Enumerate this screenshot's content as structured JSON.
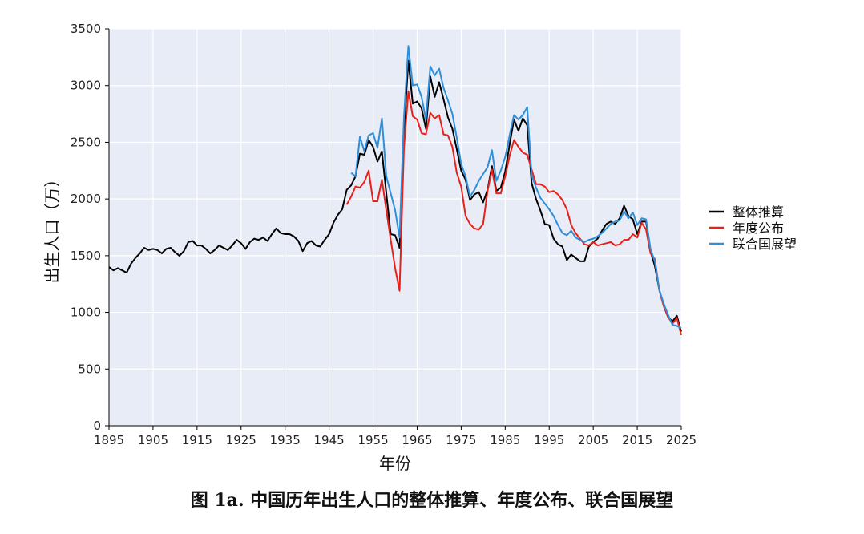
{
  "caption": "图 1a. 中国历年出生人口的整体推算、年度公布、联合国展望",
  "chart_data": {
    "type": "line",
    "title": "",
    "xlabel": "年份",
    "ylabel": "出生人口（万）",
    "xlim": [
      1895,
      2025
    ],
    "ylim": [
      0,
      3500
    ],
    "x_ticks": [
      1895,
      1905,
      1915,
      1925,
      1935,
      1945,
      1955,
      1965,
      1975,
      1985,
      1995,
      2005,
      2015,
      2025
    ],
    "y_ticks": [
      0,
      500,
      1000,
      1500,
      2000,
      2500,
      3000,
      3500
    ],
    "grid": true,
    "plot_background": "#e8ecf6",
    "legend_position": "right",
    "series": [
      {
        "name": "整体推算",
        "color": "#000000",
        "points": [
          [
            1895,
            1400
          ],
          [
            1896,
            1370
          ],
          [
            1897,
            1390
          ],
          [
            1898,
            1370
          ],
          [
            1899,
            1350
          ],
          [
            1900,
            1430
          ],
          [
            1901,
            1480
          ],
          [
            1902,
            1520
          ],
          [
            1903,
            1570
          ],
          [
            1904,
            1550
          ],
          [
            1905,
            1560
          ],
          [
            1906,
            1550
          ],
          [
            1907,
            1520
          ],
          [
            1908,
            1560
          ],
          [
            1909,
            1570
          ],
          [
            1910,
            1530
          ],
          [
            1911,
            1500
          ],
          [
            1912,
            1540
          ],
          [
            1913,
            1620
          ],
          [
            1914,
            1630
          ],
          [
            1915,
            1590
          ],
          [
            1916,
            1590
          ],
          [
            1917,
            1560
          ],
          [
            1918,
            1520
          ],
          [
            1919,
            1550
          ],
          [
            1920,
            1590
          ],
          [
            1921,
            1570
          ],
          [
            1922,
            1550
          ],
          [
            1923,
            1590
          ],
          [
            1924,
            1640
          ],
          [
            1925,
            1610
          ],
          [
            1926,
            1560
          ],
          [
            1927,
            1620
          ],
          [
            1928,
            1650
          ],
          [
            1929,
            1640
          ],
          [
            1930,
            1660
          ],
          [
            1931,
            1630
          ],
          [
            1932,
            1690
          ],
          [
            1933,
            1740
          ],
          [
            1934,
            1700
          ],
          [
            1935,
            1690
          ],
          [
            1936,
            1690
          ],
          [
            1937,
            1670
          ],
          [
            1938,
            1630
          ],
          [
            1939,
            1540
          ],
          [
            1940,
            1610
          ],
          [
            1941,
            1630
          ],
          [
            1942,
            1590
          ],
          [
            1943,
            1580
          ],
          [
            1944,
            1640
          ],
          [
            1945,
            1690
          ],
          [
            1946,
            1790
          ],
          [
            1947,
            1860
          ],
          [
            1948,
            1910
          ],
          [
            1949,
            2080
          ],
          [
            1950,
            2120
          ],
          [
            1951,
            2200
          ],
          [
            1952,
            2400
          ],
          [
            1953,
            2390
          ],
          [
            1954,
            2520
          ],
          [
            1955,
            2460
          ],
          [
            1956,
            2330
          ],
          [
            1957,
            2420
          ],
          [
            1958,
            2050
          ],
          [
            1959,
            1690
          ],
          [
            1960,
            1680
          ],
          [
            1961,
            1570
          ],
          [
            1962,
            2600
          ],
          [
            1963,
            3220
          ],
          [
            1964,
            2840
          ],
          [
            1965,
            2860
          ],
          [
            1966,
            2800
          ],
          [
            1967,
            2620
          ],
          [
            1968,
            3080
          ],
          [
            1969,
            2900
          ],
          [
            1970,
            3030
          ],
          [
            1971,
            2880
          ],
          [
            1972,
            2720
          ],
          [
            1973,
            2620
          ],
          [
            1974,
            2440
          ],
          [
            1975,
            2250
          ],
          [
            1976,
            2170
          ],
          [
            1977,
            1990
          ],
          [
            1978,
            2040
          ],
          [
            1979,
            2060
          ],
          [
            1980,
            1970
          ],
          [
            1981,
            2080
          ],
          [
            1982,
            2290
          ],
          [
            1983,
            2070
          ],
          [
            1984,
            2100
          ],
          [
            1985,
            2240
          ],
          [
            1986,
            2480
          ],
          [
            1987,
            2700
          ],
          [
            1988,
            2600
          ],
          [
            1989,
            2710
          ],
          [
            1990,
            2650
          ],
          [
            1991,
            2140
          ],
          [
            1992,
            2000
          ],
          [
            1993,
            1900
          ],
          [
            1994,
            1780
          ],
          [
            1995,
            1770
          ],
          [
            1996,
            1650
          ],
          [
            1997,
            1600
          ],
          [
            1998,
            1580
          ],
          [
            1999,
            1460
          ],
          [
            2000,
            1510
          ],
          [
            2001,
            1480
          ],
          [
            2002,
            1450
          ],
          [
            2003,
            1450
          ],
          [
            2004,
            1580
          ],
          [
            2005,
            1620
          ],
          [
            2006,
            1650
          ],
          [
            2007,
            1720
          ],
          [
            2008,
            1780
          ],
          [
            2009,
            1800
          ],
          [
            2010,
            1780
          ],
          [
            2011,
            1830
          ],
          [
            2012,
            1940
          ],
          [
            2013,
            1850
          ],
          [
            2014,
            1820
          ],
          [
            2015,
            1690
          ],
          [
            2016,
            1800
          ],
          [
            2017,
            1800
          ],
          [
            2018,
            1540
          ],
          [
            2019,
            1410
          ],
          [
            2020,
            1200
          ],
          [
            2021,
            1060
          ],
          [
            2022,
            960
          ],
          [
            2023,
            920
          ],
          [
            2024,
            970
          ],
          [
            2025,
            830
          ]
        ]
      },
      {
        "name": "年度公布",
        "color": "#e8211a",
        "points": [
          [
            1949,
            1950
          ],
          [
            1950,
            2020
          ],
          [
            1951,
            2110
          ],
          [
            1952,
            2100
          ],
          [
            1953,
            2150
          ],
          [
            1954,
            2250
          ],
          [
            1955,
            1980
          ],
          [
            1956,
            1980
          ],
          [
            1957,
            2170
          ],
          [
            1958,
            1900
          ],
          [
            1959,
            1640
          ],
          [
            1960,
            1390
          ],
          [
            1961,
            1190
          ],
          [
            1962,
            2450
          ],
          [
            1963,
            2950
          ],
          [
            1964,
            2730
          ],
          [
            1965,
            2700
          ],
          [
            1966,
            2580
          ],
          [
            1967,
            2570
          ],
          [
            1968,
            2760
          ],
          [
            1969,
            2710
          ],
          [
            1970,
            2740
          ],
          [
            1971,
            2570
          ],
          [
            1972,
            2560
          ],
          [
            1973,
            2460
          ],
          [
            1974,
            2230
          ],
          [
            1975,
            2110
          ],
          [
            1976,
            1850
          ],
          [
            1977,
            1780
          ],
          [
            1978,
            1740
          ],
          [
            1979,
            1730
          ],
          [
            1980,
            1780
          ],
          [
            1981,
            2070
          ],
          [
            1982,
            2260
          ],
          [
            1983,
            2050
          ],
          [
            1984,
            2050
          ],
          [
            1985,
            2200
          ],
          [
            1986,
            2380
          ],
          [
            1987,
            2520
          ],
          [
            1988,
            2460
          ],
          [
            1989,
            2410
          ],
          [
            1990,
            2390
          ],
          [
            1991,
            2260
          ],
          [
            1992,
            2130
          ],
          [
            1993,
            2130
          ],
          [
            1994,
            2110
          ],
          [
            1995,
            2060
          ],
          [
            1996,
            2070
          ],
          [
            1997,
            2040
          ],
          [
            1998,
            1990
          ],
          [
            1999,
            1910
          ],
          [
            2000,
            1770
          ],
          [
            2001,
            1700
          ],
          [
            2002,
            1650
          ],
          [
            2003,
            1600
          ],
          [
            2004,
            1590
          ],
          [
            2005,
            1620
          ],
          [
            2006,
            1590
          ],
          [
            2007,
            1600
          ],
          [
            2008,
            1610
          ],
          [
            2009,
            1620
          ],
          [
            2010,
            1590
          ],
          [
            2011,
            1600
          ],
          [
            2012,
            1640
          ],
          [
            2013,
            1640
          ],
          [
            2014,
            1690
          ],
          [
            2015,
            1660
          ],
          [
            2016,
            1790
          ],
          [
            2017,
            1730
          ],
          [
            2018,
            1520
          ],
          [
            2019,
            1470
          ],
          [
            2020,
            1200
          ],
          [
            2021,
            1060
          ],
          [
            2022,
            960
          ],
          [
            2023,
            900
          ],
          [
            2024,
            950
          ],
          [
            2025,
            800
          ]
        ]
      },
      {
        "name": "联合国展望",
        "color": "#2e8fd8",
        "points": [
          [
            1950,
            2230
          ],
          [
            1951,
            2200
          ],
          [
            1952,
            2550
          ],
          [
            1953,
            2420
          ],
          [
            1954,
            2560
          ],
          [
            1955,
            2580
          ],
          [
            1956,
            2450
          ],
          [
            1957,
            2710
          ],
          [
            1958,
            2200
          ],
          [
            1959,
            2050
          ],
          [
            1960,
            1900
          ],
          [
            1961,
            1660
          ],
          [
            1962,
            2720
          ],
          [
            1963,
            3350
          ],
          [
            1964,
            3000
          ],
          [
            1965,
            3010
          ],
          [
            1966,
            2900
          ],
          [
            1967,
            2700
          ],
          [
            1968,
            3170
          ],
          [
            1969,
            3090
          ],
          [
            1970,
            3150
          ],
          [
            1971,
            2980
          ],
          [
            1972,
            2870
          ],
          [
            1973,
            2750
          ],
          [
            1974,
            2540
          ],
          [
            1975,
            2310
          ],
          [
            1976,
            2200
          ],
          [
            1977,
            2020
          ],
          [
            1978,
            2080
          ],
          [
            1979,
            2160
          ],
          [
            1980,
            2220
          ],
          [
            1981,
            2280
          ],
          [
            1982,
            2430
          ],
          [
            1983,
            2160
          ],
          [
            1984,
            2250
          ],
          [
            1985,
            2370
          ],
          [
            1986,
            2560
          ],
          [
            1987,
            2740
          ],
          [
            1988,
            2700
          ],
          [
            1989,
            2740
          ],
          [
            1990,
            2810
          ],
          [
            1991,
            2210
          ],
          [
            1992,
            2100
          ],
          [
            1993,
            2010
          ],
          [
            1994,
            1960
          ],
          [
            1995,
            1910
          ],
          [
            1996,
            1850
          ],
          [
            1997,
            1770
          ],
          [
            1998,
            1700
          ],
          [
            1999,
            1680
          ],
          [
            2000,
            1720
          ],
          [
            2001,
            1660
          ],
          [
            2002,
            1640
          ],
          [
            2003,
            1620
          ],
          [
            2004,
            1640
          ],
          [
            2005,
            1650
          ],
          [
            2006,
            1670
          ],
          [
            2007,
            1700
          ],
          [
            2008,
            1740
          ],
          [
            2009,
            1780
          ],
          [
            2010,
            1800
          ],
          [
            2011,
            1810
          ],
          [
            2012,
            1890
          ],
          [
            2013,
            1830
          ],
          [
            2014,
            1880
          ],
          [
            2015,
            1770
          ],
          [
            2016,
            1830
          ],
          [
            2017,
            1820
          ],
          [
            2018,
            1560
          ],
          [
            2019,
            1450
          ],
          [
            2020,
            1200
          ],
          [
            2021,
            1080
          ],
          [
            2022,
            980
          ],
          [
            2023,
            890
          ],
          [
            2024,
            880
          ],
          [
            2025,
            860
          ]
        ]
      }
    ]
  }
}
